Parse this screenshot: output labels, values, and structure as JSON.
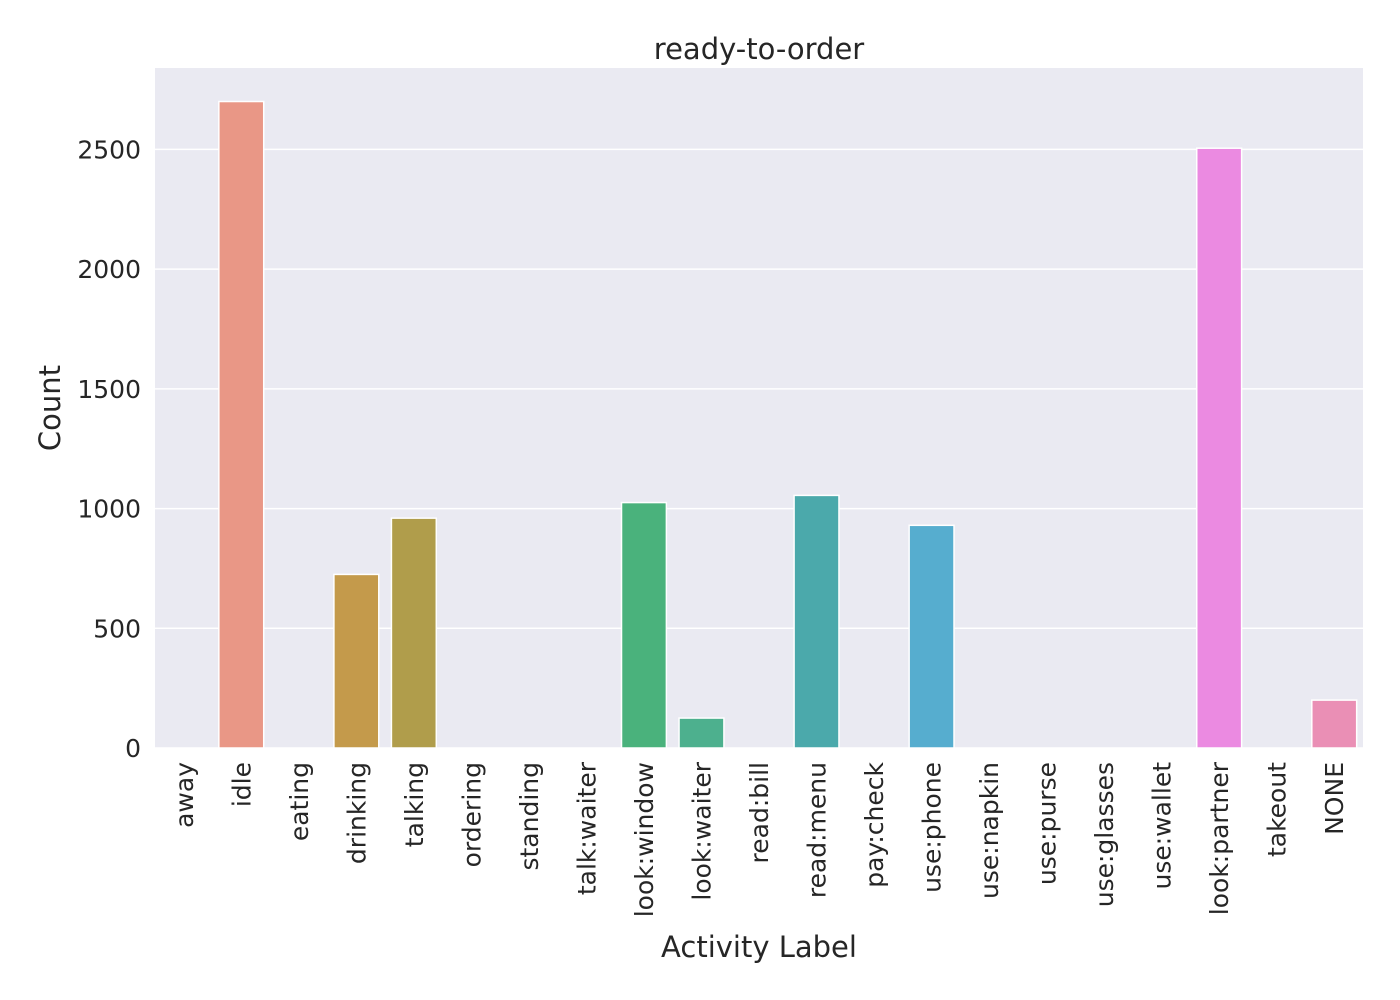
{
  "chart_data": {
    "type": "bar",
    "title": "ready-to-order",
    "xlabel": "Activity Label",
    "ylabel": "Count",
    "ylim": [
      0,
      2840
    ],
    "yticks": [
      0,
      500,
      1000,
      1500,
      2000,
      2500
    ],
    "grid": true,
    "categories": [
      "away",
      "idle",
      "eating",
      "drinking",
      "talking",
      "ordering",
      "standing",
      "talk:waiter",
      "look:window",
      "look:waiter",
      "read:bill",
      "read:menu",
      "pay:check",
      "use:phone",
      "use:napkin",
      "use:purse",
      "use:glasses",
      "use:wallet",
      "look:partner",
      "takeout",
      "NONE"
    ],
    "values": [
      0,
      2700,
      0,
      725,
      960,
      0,
      0,
      0,
      1025,
      125,
      0,
      1055,
      0,
      930,
      0,
      0,
      0,
      0,
      2505,
      0,
      200
    ],
    "colors": [
      "#f0776b",
      "#e99786",
      "#d7903d",
      "#c49a4b",
      "#b09d4b",
      "#9aa548",
      "#7cae4b",
      "#4fb05a",
      "#4ab27c",
      "#4db08e",
      "#4cb19f",
      "#4ba9ab",
      "#4eaab8",
      "#56adcf",
      "#72a9dc",
      "#8c9fdc",
      "#b08fe0",
      "#d687e0",
      "#eb8ae1",
      "#ec8bc6",
      "#ea8fb5"
    ]
  }
}
